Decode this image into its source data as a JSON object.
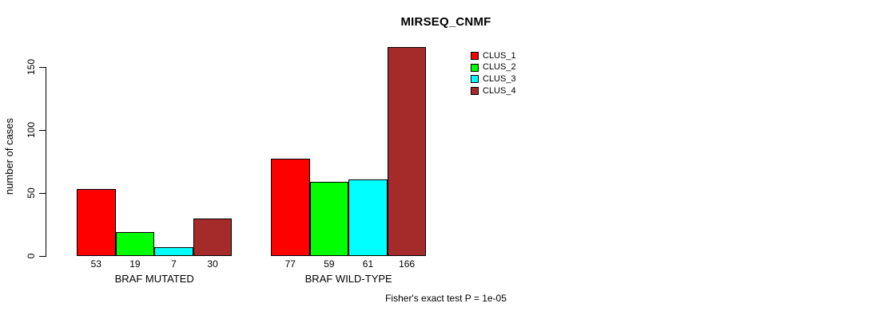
{
  "chart_data": {
    "type": "bar",
    "title": "MIRSEQ_CNMF",
    "ylabel": "number of cases",
    "xlabel": "",
    "categories": [
      "BRAF MUTATED",
      "BRAF WILD-TYPE"
    ],
    "series": [
      {
        "name": "CLUS_1",
        "color": "#ff0000",
        "values": [
          53,
          77
        ]
      },
      {
        "name": "CLUS_2",
        "color": "#00ff00",
        "values": [
          19,
          59
        ]
      },
      {
        "name": "CLUS_3",
        "color": "#00ffff",
        "values": [
          7,
          61
        ]
      },
      {
        "name": "CLUS_4",
        "color": "#a52a2a",
        "values": [
          30,
          166
        ]
      }
    ],
    "value_labels": [
      [
        53,
        19,
        7,
        30
      ],
      [
        77,
        59,
        61,
        166
      ]
    ],
    "yticks": [
      0,
      50,
      100,
      150
    ],
    "ylim": [
      0,
      175
    ],
    "grid": false,
    "bar_border_color": "#000000",
    "text_color": "#000000",
    "background_color": "#ffffff",
    "legend_position": "right",
    "annotation": "Fisher's exact test P = 1e-05"
  }
}
